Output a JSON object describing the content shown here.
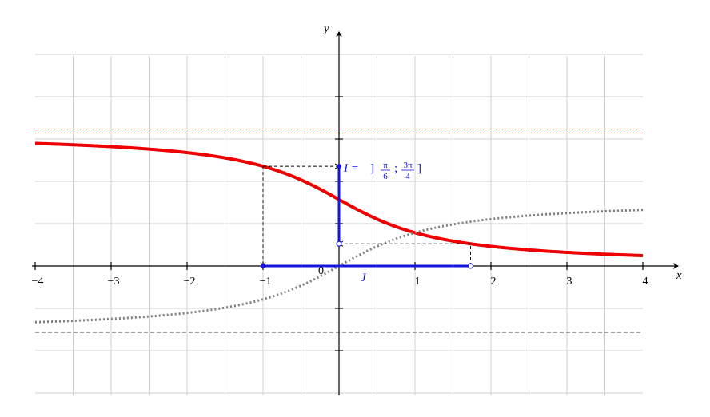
{
  "chart_data": {
    "type": "line",
    "xlabel": "x",
    "ylabel": "y",
    "xlim": [
      -4,
      4
    ],
    "ylim": [
      -3,
      5
    ],
    "grid": true,
    "x_ticks": [
      -4,
      -3,
      -2,
      -1,
      1,
      2,
      3,
      4
    ],
    "x_tick_labels": [
      "−4",
      "−3",
      "−2",
      "−1",
      "1",
      "2",
      "3",
      "4"
    ],
    "origin_label": "0",
    "y_ticks": [
      -2,
      -1,
      1,
      2,
      3,
      4
    ],
    "series": [
      {
        "function": "arccot(x)",
        "style": "solid",
        "color": "#ee0000",
        "x": [
          -4,
          -3,
          -2,
          -1,
          -0.5,
          0,
          0.5,
          1,
          1.7321,
          2,
          3,
          4
        ],
        "y": [
          2.8966,
          2.8198,
          2.6779,
          2.3562,
          2.0344,
          1.5708,
          1.1071,
          0.7854,
          0.5236,
          0.4636,
          0.3218,
          0.245
        ]
      },
      {
        "function": "arctan(x)",
        "style": "dotted",
        "color": "#808080",
        "x": [
          -4,
          -3,
          -2,
          -1,
          -0.5,
          0,
          0.5,
          1,
          2,
          3,
          4
        ],
        "y": [
          -1.3258,
          -1.249,
          -1.1071,
          -0.7854,
          -0.4636,
          0,
          0.4636,
          0.7854,
          1.1071,
          1.249,
          1.3258
        ]
      }
    ],
    "asymptotes": [
      {
        "y": 3.1416,
        "color": "#cc0000",
        "style": "dashed"
      },
      {
        "y": -1.5708,
        "color": "#808080",
        "style": "dashed"
      }
    ],
    "interval_I": {
      "axis": "y",
      "from": 0.5236,
      "to": 2.3562,
      "open_at": 0.5236,
      "closed_at": 2.3562,
      "color": "#1515e0",
      "label_prefix": "I = ",
      "open_bracket": "]",
      "close_bracket": "]",
      "separator": ";",
      "lower_num": "π",
      "lower_den": "6",
      "upper_num": "3π",
      "upper_den": "4"
    },
    "interval_J": {
      "axis": "x",
      "from": -1,
      "to": 1.7321,
      "open_at": 1.7321,
      "closed_at": -1,
      "color": "#1515e0",
      "label": "J"
    },
    "projections": [
      {
        "x": -1,
        "y": 2.3562
      },
      {
        "x": 1.7321,
        "y": 0.5236
      }
    ]
  }
}
